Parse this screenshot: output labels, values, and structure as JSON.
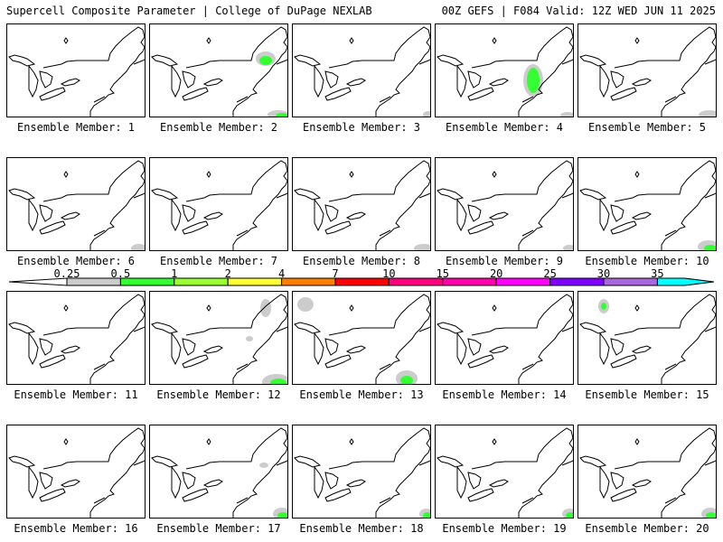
{
  "header": {
    "left": "Supercell Composite Parameter | College of DuPage NEXLAB",
    "right": "00Z GEFS | F084 Valid: 12Z WED JUN 11 2025"
  },
  "colorbar": {
    "labels": [
      "0.25",
      "0.5",
      "1",
      "2",
      "4",
      "7",
      "10",
      "15",
      "20",
      "25",
      "30",
      "35"
    ],
    "colors": [
      "#cccccc",
      "#33ff33",
      "#99ff33",
      "#ffff33",
      "#ff8000",
      "#ff0000",
      "#ff0080",
      "#ff00aa",
      "#ff00ff",
      "#8000ff",
      "#aa66dd",
      "#00ffff"
    ]
  },
  "members": [
    {
      "label": "Ensemble Member: 1",
      "blobs": []
    },
    {
      "label": "Ensemble Member: 2",
      "blobs": [
        {
          "cx": 128,
          "cy": 38,
          "rx": 11,
          "ry": 8,
          "color": "#cccccc"
        },
        {
          "cx": 128,
          "cy": 40,
          "rx": 7,
          "ry": 5,
          "color": "#33ff33"
        },
        {
          "cx": 142,
          "cy": 100,
          "rx": 12,
          "ry": 5,
          "color": "#cccccc"
        },
        {
          "cx": 146,
          "cy": 101,
          "rx": 7,
          "ry": 3,
          "color": "#33ff33"
        }
      ]
    },
    {
      "label": "Ensemble Member: 3",
      "blobs": [
        {
          "cx": 150,
          "cy": 100,
          "rx": 6,
          "ry": 4,
          "color": "#cccccc"
        }
      ]
    },
    {
      "label": "Ensemble Member: 4",
      "blobs": [
        {
          "cx": 108,
          "cy": 62,
          "rx": 11,
          "ry": 18,
          "color": "#cccccc"
        },
        {
          "cx": 108,
          "cy": 62,
          "rx": 7,
          "ry": 14,
          "color": "#33ff33"
        },
        {
          "cx": 146,
          "cy": 101,
          "rx": 8,
          "ry": 4,
          "color": "#cccccc"
        }
      ]
    },
    {
      "label": "Ensemble Member: 5",
      "blobs": [
        {
          "cx": 145,
          "cy": 100,
          "rx": 12,
          "ry": 5,
          "color": "#cccccc"
        }
      ]
    },
    {
      "label": "Ensemble Member: 6",
      "blobs": [
        {
          "cx": 146,
          "cy": 100,
          "rx": 9,
          "ry": 5,
          "color": "#cccccc"
        }
      ]
    },
    {
      "label": "Ensemble Member: 7",
      "blobs": []
    },
    {
      "label": "Ensemble Member: 8",
      "blobs": [
        {
          "cx": 145,
          "cy": 100,
          "rx": 11,
          "ry": 5,
          "color": "#cccccc"
        }
      ]
    },
    {
      "label": "Ensemble Member: 9",
      "blobs": [
        {
          "cx": 148,
          "cy": 100,
          "rx": 7,
          "ry": 4,
          "color": "#cccccc"
        }
      ]
    },
    {
      "label": "Ensemble Member: 10",
      "blobs": [
        {
          "cx": 144,
          "cy": 98,
          "rx": 12,
          "ry": 7,
          "color": "#cccccc"
        },
        {
          "cx": 146,
          "cy": 100,
          "rx": 7,
          "ry": 4,
          "color": "#33ff33"
        }
      ]
    },
    {
      "label": "Ensemble Member: 11",
      "blobs": []
    },
    {
      "label": "Ensemble Member: 12",
      "blobs": [
        {
          "cx": 140,
          "cy": 100,
          "rx": 16,
          "ry": 9,
          "color": "#cccccc"
        },
        {
          "cx": 142,
          "cy": 101,
          "rx": 9,
          "ry": 5,
          "color": "#33ff33"
        },
        {
          "cx": 128,
          "cy": 18,
          "rx": 6,
          "ry": 10,
          "color": "#cccccc"
        },
        {
          "cx": 110,
          "cy": 52,
          "rx": 4,
          "ry": 3,
          "color": "#cccccc"
        }
      ]
    },
    {
      "label": "Ensemble Member: 13",
      "blobs": [
        {
          "cx": 126,
          "cy": 96,
          "rx": 12,
          "ry": 9,
          "color": "#cccccc"
        },
        {
          "cx": 126,
          "cy": 98,
          "rx": 7,
          "ry": 5,
          "color": "#33ff33"
        },
        {
          "cx": 14,
          "cy": 14,
          "rx": 9,
          "ry": 8,
          "color": "#cccccc"
        }
      ]
    },
    {
      "label": "Ensemble Member: 14",
      "blobs": []
    },
    {
      "label": "Ensemble Member: 15",
      "blobs": [
        {
          "cx": 28,
          "cy": 16,
          "rx": 6,
          "ry": 8,
          "color": "#cccccc"
        },
        {
          "cx": 28,
          "cy": 16,
          "rx": 3,
          "ry": 4,
          "color": "#33ff33"
        }
      ]
    },
    {
      "label": "Ensemble Member: 16",
      "blobs": []
    },
    {
      "label": "Ensemble Member: 17",
      "blobs": [
        {
          "cx": 146,
          "cy": 98,
          "rx": 10,
          "ry": 7,
          "color": "#cccccc"
        },
        {
          "cx": 147,
          "cy": 100,
          "rx": 6,
          "ry": 4,
          "color": "#33ff33"
        },
        {
          "cx": 126,
          "cy": 44,
          "rx": 5,
          "ry": 3,
          "color": "#cccccc"
        }
      ]
    },
    {
      "label": "Ensemble Member: 18",
      "blobs": [
        {
          "cx": 148,
          "cy": 98,
          "rx": 8,
          "ry": 6,
          "color": "#cccccc"
        },
        {
          "cx": 149,
          "cy": 100,
          "rx": 5,
          "ry": 4,
          "color": "#33ff33"
        }
      ]
    },
    {
      "label": "Ensemble Member: 19",
      "blobs": [
        {
          "cx": 148,
          "cy": 98,
          "rx": 8,
          "ry": 6,
          "color": "#cccccc"
        },
        {
          "cx": 149,
          "cy": 100,
          "rx": 5,
          "ry": 4,
          "color": "#33ff33"
        }
      ]
    },
    {
      "label": "Ensemble Member: 20",
      "blobs": [
        {
          "cx": 146,
          "cy": 98,
          "rx": 10,
          "ry": 7,
          "color": "#cccccc"
        },
        {
          "cx": 147,
          "cy": 100,
          "rx": 6,
          "ry": 4,
          "color": "#33ff33"
        }
      ]
    }
  ]
}
